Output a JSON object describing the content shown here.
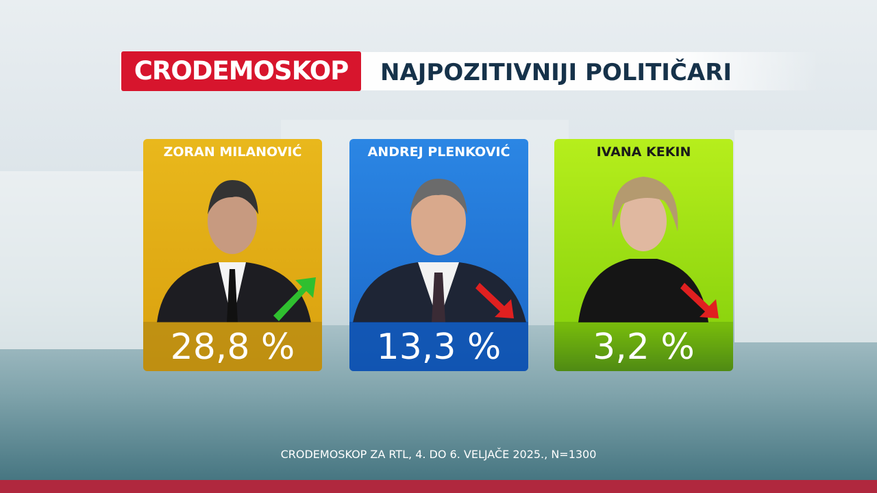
{
  "header": {
    "brand": "CRODEMOSKOP",
    "title": "NAJPOZITIVNIJI POLITIČARI"
  },
  "cards": [
    {
      "name": "ZORAN MILANOVIĆ",
      "value": "28,8 %"
    },
    {
      "name": "ANDREJ PLENKOVIĆ",
      "value": "13,3 %"
    },
    {
      "name": "IVANA KEKIN",
      "value": "3,2 %"
    }
  ],
  "footer": {
    "source": "CRODEMOSKOP ZA RTL, 4. DO 6. VELJAČE 2025., N=1300"
  }
}
